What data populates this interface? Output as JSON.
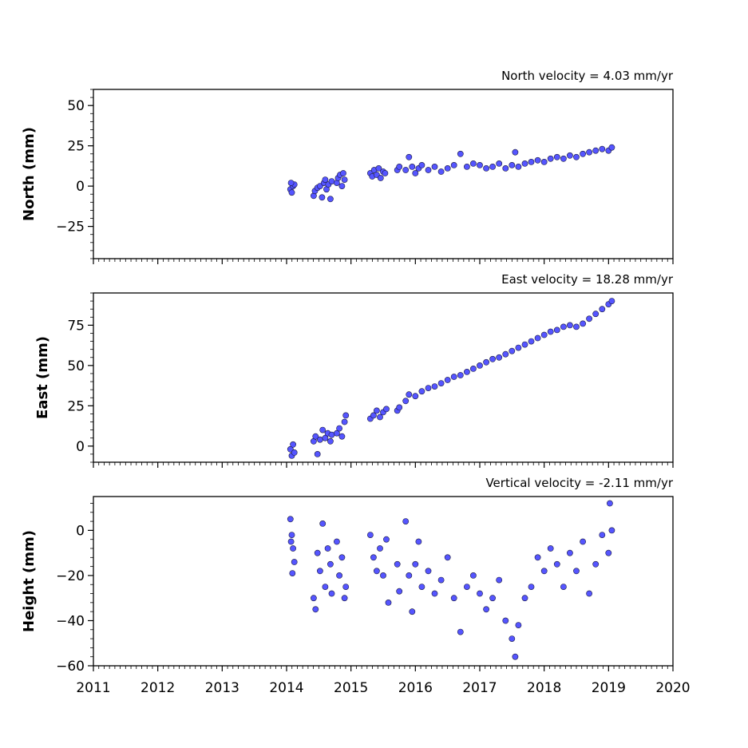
{
  "colors": {
    "marker_fill": "#5555ff",
    "marker_edge": "#1a1a40",
    "axis": "#000000",
    "background": "#ffffff"
  },
  "chart_data": [
    {
      "type": "scatter",
      "panel": "north",
      "title": "North velocity = 4.03 mm/yr",
      "ylabel": "North (mm)",
      "xlim": [
        2011,
        2020
      ],
      "ylim": [
        -45,
        60
      ],
      "yticks": [
        -25,
        0,
        25,
        50
      ],
      "ytick_labels": [
        "−25",
        "0",
        "25",
        "50"
      ],
      "x_tick_labels_shown": false,
      "grid": false,
      "velocity_mm_per_yr": 4.03,
      "points": [
        {
          "x": 2014.06,
          "y": -2
        },
        {
          "x": 2014.08,
          "y": -4
        },
        {
          "x": 2014.1,
          "y": 0
        },
        {
          "x": 2014.12,
          "y": 1
        },
        {
          "x": 2014.07,
          "y": 2
        },
        {
          "x": 2014.42,
          "y": -6
        },
        {
          "x": 2014.44,
          "y": -3
        },
        {
          "x": 2014.48,
          "y": -1
        },
        {
          "x": 2014.52,
          "y": 0
        },
        {
          "x": 2014.55,
          "y": -7
        },
        {
          "x": 2014.58,
          "y": 2
        },
        {
          "x": 2014.6,
          "y": 4
        },
        {
          "x": 2014.62,
          "y": -2
        },
        {
          "x": 2014.65,
          "y": 1
        },
        {
          "x": 2014.68,
          "y": -8
        },
        {
          "x": 2014.7,
          "y": 3
        },
        {
          "x": 2014.78,
          "y": 2
        },
        {
          "x": 2014.8,
          "y": 5
        },
        {
          "x": 2014.83,
          "y": 7
        },
        {
          "x": 2014.86,
          "y": 0
        },
        {
          "x": 2014.88,
          "y": 8
        },
        {
          "x": 2014.9,
          "y": 4
        },
        {
          "x": 2015.3,
          "y": 8
        },
        {
          "x": 2015.33,
          "y": 6
        },
        {
          "x": 2015.36,
          "y": 10
        },
        {
          "x": 2015.4,
          "y": 7
        },
        {
          "x": 2015.43,
          "y": 11
        },
        {
          "x": 2015.46,
          "y": 5
        },
        {
          "x": 2015.5,
          "y": 9
        },
        {
          "x": 2015.53,
          "y": 8
        },
        {
          "x": 2015.72,
          "y": 10
        },
        {
          "x": 2015.75,
          "y": 12
        },
        {
          "x": 2015.85,
          "y": 10
        },
        {
          "x": 2015.9,
          "y": 18
        },
        {
          "x": 2015.95,
          "y": 12
        },
        {
          "x": 2016.0,
          "y": 8
        },
        {
          "x": 2016.05,
          "y": 11
        },
        {
          "x": 2016.1,
          "y": 13
        },
        {
          "x": 2016.2,
          "y": 10
        },
        {
          "x": 2016.3,
          "y": 12
        },
        {
          "x": 2016.4,
          "y": 9
        },
        {
          "x": 2016.5,
          "y": 11
        },
        {
          "x": 2016.6,
          "y": 13
        },
        {
          "x": 2016.7,
          "y": 20
        },
        {
          "x": 2016.8,
          "y": 12
        },
        {
          "x": 2016.9,
          "y": 14
        },
        {
          "x": 2017.0,
          "y": 13
        },
        {
          "x": 2017.1,
          "y": 11
        },
        {
          "x": 2017.2,
          "y": 12
        },
        {
          "x": 2017.3,
          "y": 14
        },
        {
          "x": 2017.4,
          "y": 11
        },
        {
          "x": 2017.5,
          "y": 13
        },
        {
          "x": 2017.55,
          "y": 21
        },
        {
          "x": 2017.6,
          "y": 12
        },
        {
          "x": 2017.7,
          "y": 14
        },
        {
          "x": 2017.8,
          "y": 15
        },
        {
          "x": 2017.9,
          "y": 16
        },
        {
          "x": 2018.0,
          "y": 15
        },
        {
          "x": 2018.1,
          "y": 17
        },
        {
          "x": 2018.2,
          "y": 18
        },
        {
          "x": 2018.3,
          "y": 17
        },
        {
          "x": 2018.4,
          "y": 19
        },
        {
          "x": 2018.5,
          "y": 18
        },
        {
          "x": 2018.6,
          "y": 20
        },
        {
          "x": 2018.7,
          "y": 21
        },
        {
          "x": 2018.8,
          "y": 22
        },
        {
          "x": 2018.9,
          "y": 23
        },
        {
          "x": 2019.0,
          "y": 22
        },
        {
          "x": 2019.05,
          "y": 24
        }
      ]
    },
    {
      "type": "scatter",
      "panel": "east",
      "title": "East velocity = 18.28 mm/yr",
      "ylabel": "East (mm)",
      "xlim": [
        2011,
        2020
      ],
      "ylim": [
        -10,
        95
      ],
      "yticks": [
        0,
        25,
        50,
        75
      ],
      "ytick_labels": [
        "0",
        "25",
        "50",
        "75"
      ],
      "x_tick_labels_shown": false,
      "grid": false,
      "velocity_mm_per_yr": 18.28,
      "points": [
        {
          "x": 2014.06,
          "y": -2
        },
        {
          "x": 2014.08,
          "y": -6
        },
        {
          "x": 2014.1,
          "y": 1
        },
        {
          "x": 2014.12,
          "y": -4
        },
        {
          "x": 2014.42,
          "y": 3
        },
        {
          "x": 2014.45,
          "y": 6
        },
        {
          "x": 2014.48,
          "y": -5
        },
        {
          "x": 2014.52,
          "y": 4
        },
        {
          "x": 2014.56,
          "y": 10
        },
        {
          "x": 2014.6,
          "y": 5
        },
        {
          "x": 2014.64,
          "y": 8
        },
        {
          "x": 2014.68,
          "y": 3
        },
        {
          "x": 2014.7,
          "y": 7
        },
        {
          "x": 2014.78,
          "y": 8
        },
        {
          "x": 2014.82,
          "y": 11
        },
        {
          "x": 2014.86,
          "y": 6
        },
        {
          "x": 2014.9,
          "y": 15
        },
        {
          "x": 2014.92,
          "y": 19
        },
        {
          "x": 2015.3,
          "y": 17
        },
        {
          "x": 2015.35,
          "y": 19
        },
        {
          "x": 2015.4,
          "y": 22
        },
        {
          "x": 2015.45,
          "y": 18
        },
        {
          "x": 2015.5,
          "y": 21
        },
        {
          "x": 2015.55,
          "y": 23
        },
        {
          "x": 2015.72,
          "y": 22
        },
        {
          "x": 2015.75,
          "y": 24
        },
        {
          "x": 2015.85,
          "y": 28
        },
        {
          "x": 2015.9,
          "y": 32
        },
        {
          "x": 2016.0,
          "y": 31
        },
        {
          "x": 2016.1,
          "y": 34
        },
        {
          "x": 2016.2,
          "y": 36
        },
        {
          "x": 2016.3,
          "y": 37
        },
        {
          "x": 2016.4,
          "y": 39
        },
        {
          "x": 2016.5,
          "y": 41
        },
        {
          "x": 2016.6,
          "y": 43
        },
        {
          "x": 2016.7,
          "y": 44
        },
        {
          "x": 2016.8,
          "y": 46
        },
        {
          "x": 2016.9,
          "y": 48
        },
        {
          "x": 2017.0,
          "y": 50
        },
        {
          "x": 2017.1,
          "y": 52
        },
        {
          "x": 2017.2,
          "y": 54
        },
        {
          "x": 2017.3,
          "y": 55
        },
        {
          "x": 2017.4,
          "y": 57
        },
        {
          "x": 2017.5,
          "y": 59
        },
        {
          "x": 2017.6,
          "y": 61
        },
        {
          "x": 2017.7,
          "y": 63
        },
        {
          "x": 2017.8,
          "y": 65
        },
        {
          "x": 2017.9,
          "y": 67
        },
        {
          "x": 2018.0,
          "y": 69
        },
        {
          "x": 2018.1,
          "y": 71
        },
        {
          "x": 2018.2,
          "y": 72
        },
        {
          "x": 2018.3,
          "y": 74
        },
        {
          "x": 2018.4,
          "y": 75
        },
        {
          "x": 2018.5,
          "y": 74
        },
        {
          "x": 2018.6,
          "y": 76
        },
        {
          "x": 2018.7,
          "y": 79
        },
        {
          "x": 2018.8,
          "y": 82
        },
        {
          "x": 2018.9,
          "y": 85
        },
        {
          "x": 2019.0,
          "y": 88
        },
        {
          "x": 2019.05,
          "y": 90
        }
      ]
    },
    {
      "type": "scatter",
      "panel": "height",
      "title": "Vertical velocity = -2.11 mm/yr",
      "ylabel": "Height (mm)",
      "xlim": [
        2011,
        2020
      ],
      "ylim": [
        -60,
        15
      ],
      "yticks": [
        -60,
        -40,
        -20,
        0
      ],
      "ytick_labels": [
        "−60",
        "−40",
        "−20",
        "0"
      ],
      "xticks": [
        2011,
        2012,
        2013,
        2014,
        2015,
        2016,
        2017,
        2018,
        2019,
        2020
      ],
      "xtick_labels": [
        "2011",
        "2012",
        "2013",
        "2014",
        "2015",
        "2016",
        "2017",
        "2018",
        "2019",
        "2020"
      ],
      "x_tick_labels_shown": true,
      "grid": false,
      "velocity_mm_per_yr": -2.11,
      "points": [
        {
          "x": 2014.06,
          "y": 5
        },
        {
          "x": 2014.08,
          "y": -2
        },
        {
          "x": 2014.1,
          "y": -8
        },
        {
          "x": 2014.12,
          "y": -14
        },
        {
          "x": 2014.09,
          "y": -19
        },
        {
          "x": 2014.07,
          "y": -5
        },
        {
          "x": 2014.42,
          "y": -30
        },
        {
          "x": 2014.45,
          "y": -35
        },
        {
          "x": 2014.48,
          "y": -10
        },
        {
          "x": 2014.52,
          "y": -18
        },
        {
          "x": 2014.56,
          "y": 3
        },
        {
          "x": 2014.6,
          "y": -25
        },
        {
          "x": 2014.64,
          "y": -8
        },
        {
          "x": 2014.68,
          "y": -15
        },
        {
          "x": 2014.7,
          "y": -28
        },
        {
          "x": 2014.78,
          "y": -5
        },
        {
          "x": 2014.82,
          "y": -20
        },
        {
          "x": 2014.86,
          "y": -12
        },
        {
          "x": 2014.9,
          "y": -30
        },
        {
          "x": 2014.92,
          "y": -25
        },
        {
          "x": 2015.3,
          "y": -2
        },
        {
          "x": 2015.35,
          "y": -12
        },
        {
          "x": 2015.4,
          "y": -18
        },
        {
          "x": 2015.45,
          "y": -8
        },
        {
          "x": 2015.5,
          "y": -20
        },
        {
          "x": 2015.55,
          "y": -4
        },
        {
          "x": 2015.58,
          "y": -32
        },
        {
          "x": 2015.72,
          "y": -15
        },
        {
          "x": 2015.75,
          "y": -27
        },
        {
          "x": 2015.85,
          "y": 4
        },
        {
          "x": 2015.9,
          "y": -20
        },
        {
          "x": 2015.95,
          "y": -36
        },
        {
          "x": 2016.0,
          "y": -15
        },
        {
          "x": 2016.05,
          "y": -5
        },
        {
          "x": 2016.1,
          "y": -25
        },
        {
          "x": 2016.2,
          "y": -18
        },
        {
          "x": 2016.3,
          "y": -28
        },
        {
          "x": 2016.4,
          "y": -22
        },
        {
          "x": 2016.5,
          "y": -12
        },
        {
          "x": 2016.6,
          "y": -30
        },
        {
          "x": 2016.7,
          "y": -45
        },
        {
          "x": 2016.8,
          "y": -25
        },
        {
          "x": 2016.9,
          "y": -20
        },
        {
          "x": 2017.0,
          "y": -28
        },
        {
          "x": 2017.1,
          "y": -35
        },
        {
          "x": 2017.2,
          "y": -30
        },
        {
          "x": 2017.3,
          "y": -22
        },
        {
          "x": 2017.4,
          "y": -40
        },
        {
          "x": 2017.5,
          "y": -48
        },
        {
          "x": 2017.55,
          "y": -56
        },
        {
          "x": 2017.6,
          "y": -42
        },
        {
          "x": 2017.7,
          "y": -30
        },
        {
          "x": 2017.8,
          "y": -25
        },
        {
          "x": 2017.9,
          "y": -12
        },
        {
          "x": 2018.0,
          "y": -18
        },
        {
          "x": 2018.1,
          "y": -8
        },
        {
          "x": 2018.2,
          "y": -15
        },
        {
          "x": 2018.3,
          "y": -25
        },
        {
          "x": 2018.4,
          "y": -10
        },
        {
          "x": 2018.5,
          "y": -18
        },
        {
          "x": 2018.6,
          "y": -5
        },
        {
          "x": 2018.7,
          "y": -28
        },
        {
          "x": 2018.8,
          "y": -15
        },
        {
          "x": 2018.9,
          "y": -2
        },
        {
          "x": 2019.0,
          "y": -10
        },
        {
          "x": 2019.02,
          "y": 12
        },
        {
          "x": 2019.05,
          "y": 0
        }
      ]
    }
  ]
}
